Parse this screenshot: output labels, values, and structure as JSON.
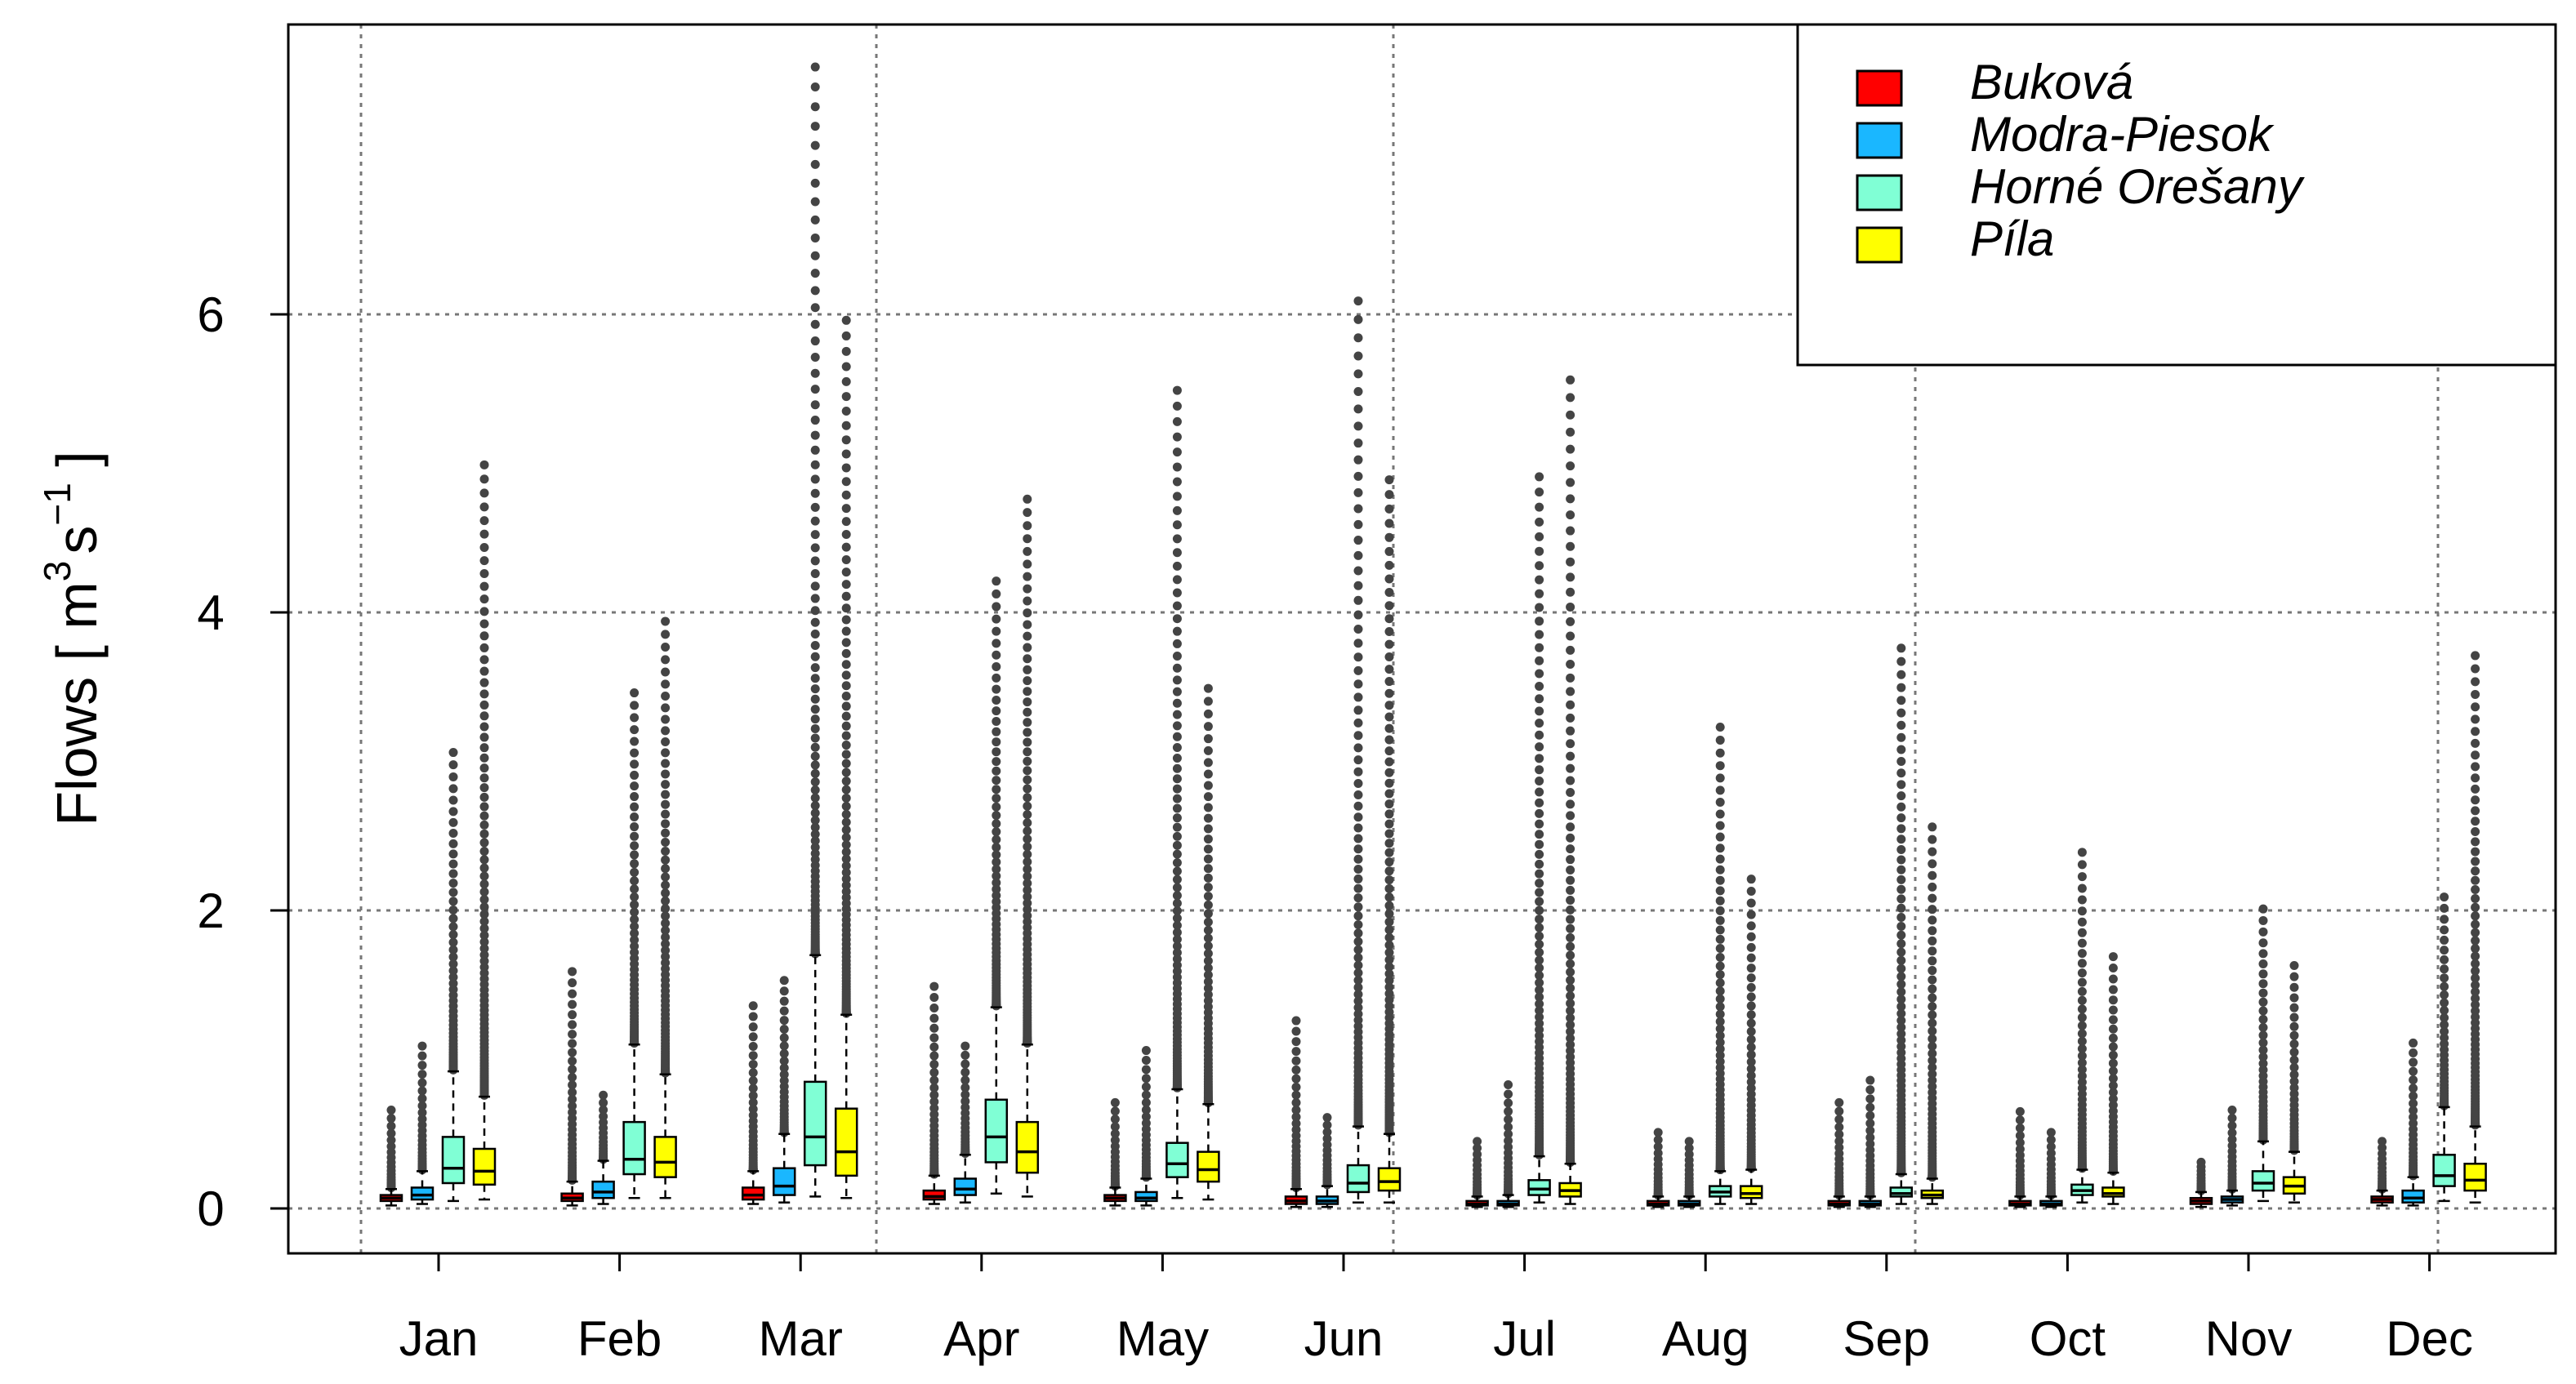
{
  "chart_data": {
    "type": "boxplot",
    "title": "",
    "xlabel": "",
    "ylabel": {
      "prefix": "Flows [ m",
      "exp1": "3",
      "middle": "s",
      "exp2": "−1",
      "suffix": " ]"
    },
    "ylim": [
      -0.3,
      8.0
    ],
    "yticks": [
      0,
      2,
      4,
      6
    ],
    "grid": true,
    "legend_position": "top-right",
    "categories": [
      "Jan",
      "Feb",
      "Mar",
      "Apr",
      "May",
      "Jun",
      "Jul",
      "Aug",
      "Sep",
      "Oct",
      "Nov",
      "Dec"
    ],
    "series": [
      {
        "name": "Buková",
        "color": "#ff0000",
        "boxes": [
          {
            "q1": 0.05,
            "median": 0.07,
            "q3": 0.09,
            "wlo": 0.02,
            "whi": 0.13,
            "outlier_max": 0.65
          },
          {
            "q1": 0.05,
            "median": 0.07,
            "q3": 0.1,
            "wlo": 0.02,
            "whi": 0.18,
            "outlier_max": 1.58
          },
          {
            "q1": 0.06,
            "median": 0.09,
            "q3": 0.14,
            "wlo": 0.03,
            "whi": 0.25,
            "outlier_max": 1.35
          },
          {
            "q1": 0.06,
            "median": 0.08,
            "q3": 0.12,
            "wlo": 0.03,
            "whi": 0.22,
            "outlier_max": 1.48
          },
          {
            "q1": 0.05,
            "median": 0.07,
            "q3": 0.09,
            "wlo": 0.02,
            "whi": 0.14,
            "outlier_max": 0.7
          },
          {
            "q1": 0.03,
            "median": 0.05,
            "q3": 0.08,
            "wlo": 0.01,
            "whi": 0.13,
            "outlier_max": 1.25
          },
          {
            "q1": 0.02,
            "median": 0.03,
            "q3": 0.05,
            "wlo": 0.01,
            "whi": 0.08,
            "outlier_max": 0.44
          },
          {
            "q1": 0.02,
            "median": 0.03,
            "q3": 0.05,
            "wlo": 0.01,
            "whi": 0.08,
            "outlier_max": 0.5
          },
          {
            "q1": 0.02,
            "median": 0.03,
            "q3": 0.05,
            "wlo": 0.01,
            "whi": 0.08,
            "outlier_max": 0.7
          },
          {
            "q1": 0.02,
            "median": 0.03,
            "q3": 0.05,
            "wlo": 0.01,
            "whi": 0.08,
            "outlier_max": 0.64
          },
          {
            "q1": 0.03,
            "median": 0.05,
            "q3": 0.07,
            "wlo": 0.01,
            "whi": 0.11,
            "outlier_max": 0.3
          },
          {
            "q1": 0.04,
            "median": 0.06,
            "q3": 0.08,
            "wlo": 0.02,
            "whi": 0.12,
            "outlier_max": 0.44
          }
        ]
      },
      {
        "name": "Modra-Piesok",
        "color": "#1ab7ff",
        "boxes": [
          {
            "q1": 0.06,
            "median": 0.09,
            "q3": 0.14,
            "wlo": 0.03,
            "whi": 0.25,
            "outlier_max": 1.08
          },
          {
            "q1": 0.07,
            "median": 0.11,
            "q3": 0.18,
            "wlo": 0.03,
            "whi": 0.32,
            "outlier_max": 0.75
          },
          {
            "q1": 0.09,
            "median": 0.15,
            "q3": 0.27,
            "wlo": 0.04,
            "whi": 0.5,
            "outlier_max": 1.52
          },
          {
            "q1": 0.09,
            "median": 0.13,
            "q3": 0.2,
            "wlo": 0.04,
            "whi": 0.36,
            "outlier_max": 1.08
          },
          {
            "q1": 0.05,
            "median": 0.07,
            "q3": 0.11,
            "wlo": 0.02,
            "whi": 0.2,
            "outlier_max": 1.05
          },
          {
            "q1": 0.03,
            "median": 0.05,
            "q3": 0.08,
            "wlo": 0.01,
            "whi": 0.15,
            "outlier_max": 0.6
          },
          {
            "q1": 0.02,
            "median": 0.03,
            "q3": 0.05,
            "wlo": 0.01,
            "whi": 0.09,
            "outlier_max": 0.82
          },
          {
            "q1": 0.02,
            "median": 0.03,
            "q3": 0.05,
            "wlo": 0.01,
            "whi": 0.08,
            "outlier_max": 0.44
          },
          {
            "q1": 0.02,
            "median": 0.03,
            "q3": 0.05,
            "wlo": 0.01,
            "whi": 0.08,
            "outlier_max": 0.85
          },
          {
            "q1": 0.02,
            "median": 0.03,
            "q3": 0.05,
            "wlo": 0.01,
            "whi": 0.08,
            "outlier_max": 0.5
          },
          {
            "q1": 0.04,
            "median": 0.06,
            "q3": 0.08,
            "wlo": 0.02,
            "whi": 0.12,
            "outlier_max": 0.65
          },
          {
            "q1": 0.04,
            "median": 0.07,
            "q3": 0.12,
            "wlo": 0.02,
            "whi": 0.21,
            "outlier_max": 1.1
          }
        ]
      },
      {
        "name": "Horné Orešany",
        "color": "#80ffd5",
        "boxes": [
          {
            "q1": 0.17,
            "median": 0.27,
            "q3": 0.48,
            "wlo": 0.05,
            "whi": 0.92,
            "outlier_max": 3.05
          },
          {
            "q1": 0.23,
            "median": 0.33,
            "q3": 0.58,
            "wlo": 0.07,
            "whi": 1.1,
            "outlier_max": 3.45
          },
          {
            "q1": 0.29,
            "median": 0.48,
            "q3": 0.85,
            "wlo": 0.08,
            "whi": 1.7,
            "outlier_max": 7.65
          },
          {
            "q1": 0.31,
            "median": 0.48,
            "q3": 0.73,
            "wlo": 0.1,
            "whi": 1.35,
            "outlier_max": 4.2
          },
          {
            "q1": 0.21,
            "median": 0.3,
            "q3": 0.44,
            "wlo": 0.07,
            "whi": 0.8,
            "outlier_max": 5.48
          },
          {
            "q1": 0.11,
            "median": 0.17,
            "q3": 0.29,
            "wlo": 0.04,
            "whi": 0.55,
            "outlier_max": 6.08
          },
          {
            "q1": 0.09,
            "median": 0.13,
            "q3": 0.19,
            "wlo": 0.04,
            "whi": 0.35,
            "outlier_max": 4.9
          },
          {
            "q1": 0.08,
            "median": 0.11,
            "q3": 0.15,
            "wlo": 0.03,
            "whi": 0.25,
            "outlier_max": 3.22
          },
          {
            "q1": 0.08,
            "median": 0.1,
            "q3": 0.14,
            "wlo": 0.03,
            "whi": 0.23,
            "outlier_max": 3.75
          },
          {
            "q1": 0.09,
            "median": 0.12,
            "q3": 0.16,
            "wlo": 0.04,
            "whi": 0.26,
            "outlier_max": 2.38
          },
          {
            "q1": 0.12,
            "median": 0.17,
            "q3": 0.25,
            "wlo": 0.05,
            "whi": 0.45,
            "outlier_max": 2.0
          },
          {
            "q1": 0.15,
            "median": 0.22,
            "q3": 0.36,
            "wlo": 0.05,
            "whi": 0.68,
            "outlier_max": 2.08
          }
        ]
      },
      {
        "name": "Píla",
        "color": "#ffff00",
        "boxes": [
          {
            "q1": 0.16,
            "median": 0.25,
            "q3": 0.4,
            "wlo": 0.06,
            "whi": 0.75,
            "outlier_max": 4.98
          },
          {
            "q1": 0.21,
            "median": 0.31,
            "q3": 0.48,
            "wlo": 0.07,
            "whi": 0.9,
            "outlier_max": 3.93
          },
          {
            "q1": 0.22,
            "median": 0.38,
            "q3": 0.67,
            "wlo": 0.07,
            "whi": 1.3,
            "outlier_max": 5.95
          },
          {
            "q1": 0.24,
            "median": 0.38,
            "q3": 0.58,
            "wlo": 0.08,
            "whi": 1.1,
            "outlier_max": 4.75
          },
          {
            "q1": 0.18,
            "median": 0.26,
            "q3": 0.38,
            "wlo": 0.06,
            "whi": 0.7,
            "outlier_max": 3.48
          },
          {
            "q1": 0.12,
            "median": 0.18,
            "q3": 0.27,
            "wlo": 0.04,
            "whi": 0.5,
            "outlier_max": 4.88
          },
          {
            "q1": 0.08,
            "median": 0.12,
            "q3": 0.17,
            "wlo": 0.03,
            "whi": 0.3,
            "outlier_max": 5.55
          },
          {
            "q1": 0.07,
            "median": 0.1,
            "q3": 0.15,
            "wlo": 0.03,
            "whi": 0.26,
            "outlier_max": 2.2
          },
          {
            "q1": 0.07,
            "median": 0.09,
            "q3": 0.12,
            "wlo": 0.03,
            "whi": 0.2,
            "outlier_max": 2.55
          },
          {
            "q1": 0.08,
            "median": 0.1,
            "q3": 0.14,
            "wlo": 0.03,
            "whi": 0.24,
            "outlier_max": 1.68
          },
          {
            "q1": 0.1,
            "median": 0.15,
            "q3": 0.21,
            "wlo": 0.04,
            "whi": 0.38,
            "outlier_max": 1.62
          },
          {
            "q1": 0.12,
            "median": 0.19,
            "q3": 0.3,
            "wlo": 0.04,
            "whi": 0.55,
            "outlier_max": 3.7
          }
        ]
      }
    ]
  }
}
